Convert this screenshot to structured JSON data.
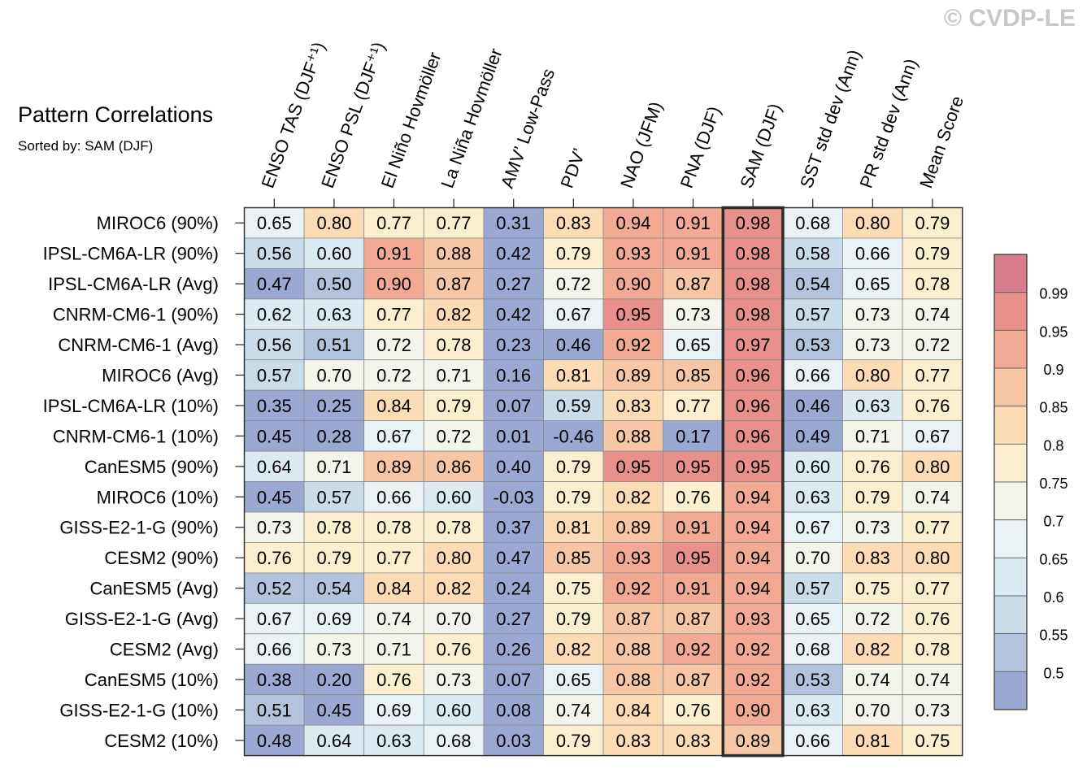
{
  "watermark": "© CVDP-LE",
  "chart_data": {
    "type": "heatmap",
    "title": "Pattern Correlations",
    "subtitle": "Sorted by: SAM (DJF)",
    "highlight_column": "SAM (DJF)",
    "columns": [
      "ENSO TAS (DJF⁺¹)",
      "ENSO PSL (DJF⁺¹)",
      "El Niño Hovmöller",
      "La Niña Hovmöller",
      "AMV’ Low-Pass",
      "PDV’",
      "NAO (JFM)",
      "PNA (DJF)",
      "SAM (DJF)",
      "SST std dev (Ann)",
      "PR std dev (Ann)",
      "Mean Score"
    ],
    "rows": [
      "MIROC6 (90%)",
      "IPSL-CM6A-LR (90%)",
      "IPSL-CM6A-LR (Avg)",
      "CNRM-CM6-1 (90%)",
      "CNRM-CM6-1 (Avg)",
      "MIROC6 (Avg)",
      "IPSL-CM6A-LR (10%)",
      "CNRM-CM6-1 (10%)",
      "CanESM5 (90%)",
      "MIROC6 (10%)",
      "GISS-E2-1-G (90%)",
      "CESM2 (90%)",
      "CanESM5 (Avg)",
      "GISS-E2-1-G (Avg)",
      "CESM2 (Avg)",
      "CanESM5 (10%)",
      "GISS-E2-1-G (10%)",
      "CESM2 (10%)"
    ],
    "values": [
      [
        "0.65",
        "0.80",
        "0.77",
        "0.77",
        "0.31",
        "0.83",
        "0.94",
        "0.91",
        "0.98",
        "0.68",
        "0.80",
        "0.79"
      ],
      [
        "0.56",
        "0.60",
        "0.91",
        "0.88",
        "0.42",
        "0.79",
        "0.93",
        "0.91",
        "0.98",
        "0.58",
        "0.66",
        "0.79"
      ],
      [
        "0.47",
        "0.50",
        "0.90",
        "0.87",
        "0.27",
        "0.72",
        "0.90",
        "0.87",
        "0.98",
        "0.54",
        "0.65",
        "0.78"
      ],
      [
        "0.62",
        "0.63",
        "0.77",
        "0.82",
        "0.42",
        "0.67",
        "0.95",
        "0.73",
        "0.98",
        "0.57",
        "0.73",
        "0.74"
      ],
      [
        "0.56",
        "0.51",
        "0.72",
        "0.78",
        "0.23",
        "0.46",
        "0.92",
        "0.65",
        "0.97",
        "0.53",
        "0.73",
        "0.72"
      ],
      [
        "0.57",
        "0.70",
        "0.72",
        "0.71",
        "0.16",
        "0.81",
        "0.89",
        "0.85",
        "0.96",
        "0.66",
        "0.80",
        "0.77"
      ],
      [
        "0.35",
        "0.25",
        "0.84",
        "0.79",
        "0.07",
        "0.59",
        "0.83",
        "0.77",
        "0.96",
        "0.46",
        "0.63",
        "0.76"
      ],
      [
        "0.45",
        "0.28",
        "0.67",
        "0.72",
        "0.01",
        "-0.46",
        "0.88",
        "0.17",
        "0.96",
        "0.49",
        "0.71",
        "0.67"
      ],
      [
        "0.64",
        "0.71",
        "0.89",
        "0.86",
        "0.40",
        "0.79",
        "0.95",
        "0.95",
        "0.95",
        "0.60",
        "0.76",
        "0.80"
      ],
      [
        "0.45",
        "0.57",
        "0.66",
        "0.60",
        "-0.03",
        "0.79",
        "0.82",
        "0.76",
        "0.94",
        "0.63",
        "0.79",
        "0.74"
      ],
      [
        "0.73",
        "0.78",
        "0.78",
        "0.78",
        "0.37",
        "0.81",
        "0.89",
        "0.91",
        "0.94",
        "0.67",
        "0.73",
        "0.77"
      ],
      [
        "0.76",
        "0.79",
        "0.77",
        "0.80",
        "0.47",
        "0.85",
        "0.93",
        "0.95",
        "0.94",
        "0.70",
        "0.83",
        "0.80"
      ],
      [
        "0.52",
        "0.54",
        "0.84",
        "0.82",
        "0.24",
        "0.75",
        "0.92",
        "0.91",
        "0.94",
        "0.57",
        "0.75",
        "0.77"
      ],
      [
        "0.67",
        "0.69",
        "0.74",
        "0.70",
        "0.27",
        "0.79",
        "0.87",
        "0.87",
        "0.93",
        "0.65",
        "0.72",
        "0.76"
      ],
      [
        "0.66",
        "0.73",
        "0.71",
        "0.76",
        "0.26",
        "0.82",
        "0.88",
        "0.92",
        "0.92",
        "0.68",
        "0.82",
        "0.78"
      ],
      [
        "0.38",
        "0.20",
        "0.76",
        "0.73",
        "0.07",
        "0.65",
        "0.88",
        "0.87",
        "0.92",
        "0.53",
        "0.74",
        "0.74"
      ],
      [
        "0.51",
        "0.45",
        "0.69",
        "0.60",
        "0.08",
        "0.74",
        "0.84",
        "0.76",
        "0.90",
        "0.63",
        "0.70",
        "0.73"
      ],
      [
        "0.48",
        "0.64",
        "0.63",
        "0.68",
        "0.03",
        "0.79",
        "0.83",
        "0.83",
        "0.89",
        "0.66",
        "0.81",
        "0.75"
      ]
    ],
    "colorbar": {
      "labels": [
        "0.99",
        "0.95",
        "0.9",
        "0.85",
        "0.8",
        "0.75",
        "0.7",
        "0.65",
        "0.6",
        "0.55",
        "0.5"
      ],
      "thresholds": [
        0.5,
        0.55,
        0.6,
        0.65,
        0.7,
        0.75,
        0.8,
        0.85,
        0.9,
        0.95,
        0.99
      ],
      "colors": [
        "#9aa9d1",
        "#b2c3de",
        "#c9dcea",
        "#dceaf2",
        "#e9f3f6",
        "#f3f4ea",
        "#fbefd0",
        "#fbdcb5",
        "#f7c6a4",
        "#f2aa95",
        "#e8908c",
        "#d77d8d"
      ]
    }
  }
}
